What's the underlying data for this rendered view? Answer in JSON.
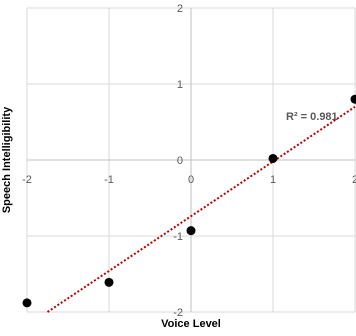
{
  "chart_data": {
    "type": "scatter",
    "xlabel": "Voice Level",
    "ylabel": "Speech Intelligibility",
    "xlim": [
      -2,
      2
    ],
    "ylim": [
      -2,
      2
    ],
    "x_ticks": [
      "-2",
      "-1",
      "0",
      "1",
      "2"
    ],
    "y_ticks": [
      "-2",
      "-1",
      "0",
      "1",
      "2"
    ],
    "grid": true,
    "series": [
      {
        "points": [
          {
            "x": -2,
            "y": -1.88
          },
          {
            "x": -1,
            "y": -1.61
          },
          {
            "x": 0,
            "y": -0.93
          },
          {
            "x": 1,
            "y": 0.02
          },
          {
            "x": 2,
            "y": 0.8
          }
        ],
        "color": "#000000"
      }
    ],
    "trendline": {
      "type": "linear",
      "start": {
        "x": -1.75,
        "y": -2
      },
      "end": {
        "x": 2,
        "y": 0.7
      },
      "color": "#c00000",
      "style": "dotted",
      "r2_label": "R² = 0.981"
    }
  }
}
